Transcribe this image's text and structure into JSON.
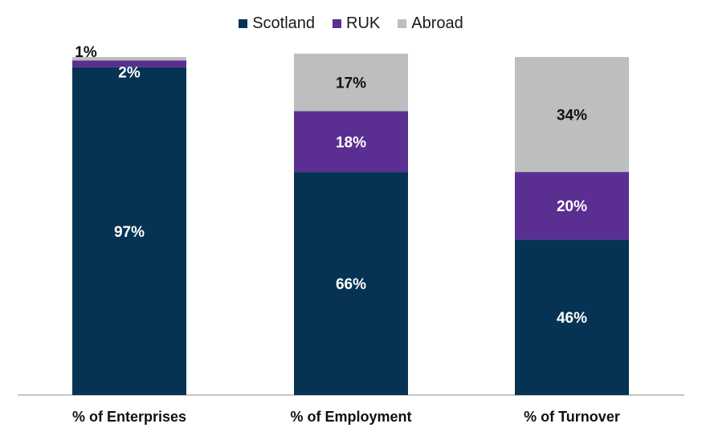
{
  "chart_data": {
    "type": "bar",
    "stacked": true,
    "categories": [
      "% of Enterprises",
      "% of Employment",
      "% of Turnover"
    ],
    "series": [
      {
        "name": "Scotland",
        "values": [
          97,
          66,
          46
        ],
        "labels": [
          "97%",
          "66%",
          "46%"
        ],
        "color": "#063354"
      },
      {
        "name": "RUK",
        "values": [
          2,
          18,
          20
        ],
        "labels": [
          "2%",
          "18%",
          "20%"
        ],
        "color": "#5b2e91"
      },
      {
        "name": "Abroad",
        "values": [
          1,
          17,
          34
        ],
        "labels": [
          "1%",
          "17%",
          "34%"
        ],
        "color": "#bdbec0"
      }
    ],
    "ylim": [
      0,
      100
    ],
    "grid": false,
    "legend": "top"
  }
}
